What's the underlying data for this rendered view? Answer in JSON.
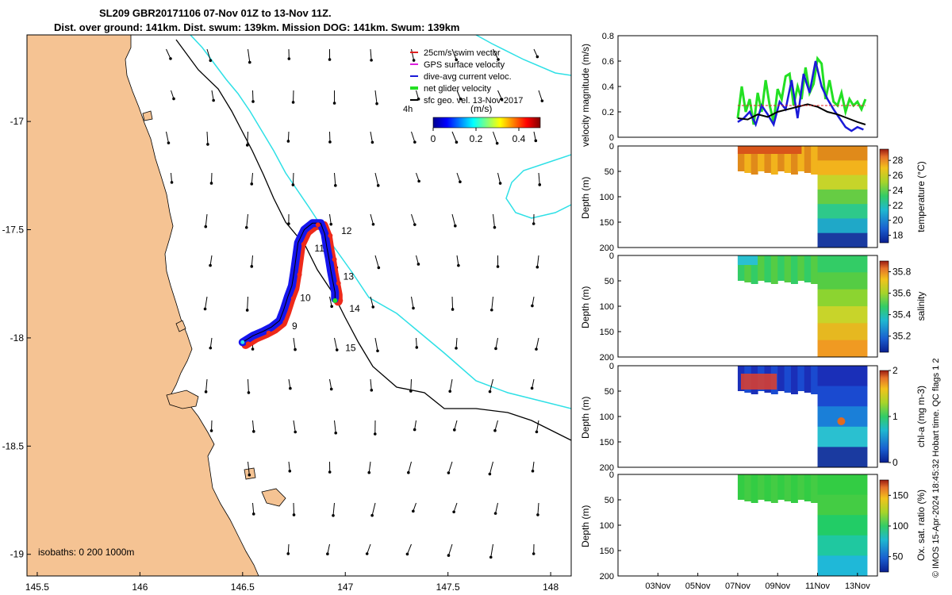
{
  "header": {
    "title_line1": "SL209 GBR20171106 07-Nov 01Z to 13-Nov 11Z.",
    "title_line2": "Dist. over ground: 141km. Dist. swum: 139km. Mission DOG: 141km. Swum: 139km"
  },
  "colors": {
    "land": "#F5C393",
    "track_blue": "#1515ee",
    "track_red": "#ee2a1a",
    "coastline": "#000000",
    "isobath_black": "#000000",
    "isobath_cyan": "#2ee0e6",
    "vel_green": "#23e023",
    "vel_blue": "#1a1ad8",
    "vel_black": "#000000",
    "vel_red": "#e02020"
  },
  "chart_data": [
    {
      "type": "map",
      "xlim": [
        145.45,
        148.1
      ],
      "ylim": [
        -19.1,
        -16.6
      ],
      "x_ticks": [
        "145.5",
        "146",
        "146.5",
        "147",
        "147.5",
        "148"
      ],
      "y_ticks": [
        "-17",
        "-17.5",
        "-18",
        "-18.5",
        "-19"
      ],
      "legend": [
        "25cm/s swim vector",
        "GPS surface velocity",
        "dive-avg current veloc.",
        "net glider velocity",
        "sfc geo. vel. 13-Nov-2017"
      ],
      "colorbar": {
        "label": "(m/s)",
        "ticks": [
          "0",
          "0.2",
          "0.4"
        ],
        "range": [
          0,
          0.5
        ]
      },
      "time_step_label": "4h",
      "isobaths_label": "isobaths: 0   200  1000m",
      "day_labels": [
        {
          "label": "9",
          "lon": 146.74,
          "lat": -17.96
        },
        {
          "label": "10",
          "lon": 146.78,
          "lat": -17.83
        },
        {
          "label": "11",
          "lon": 146.85,
          "lat": -17.6
        },
        {
          "label": "12",
          "lon": 146.98,
          "lat": -17.52
        },
        {
          "label": "13",
          "lon": 146.99,
          "lat": -17.73
        },
        {
          "label": "14",
          "lon": 147.02,
          "lat": -17.88
        },
        {
          "label": "15",
          "lon": 147.0,
          "lat": -18.06
        }
      ],
      "track": [
        [
          146.5,
          -18.02
        ],
        [
          146.55,
          -17.99
        ],
        [
          146.6,
          -17.97
        ],
        [
          146.64,
          -17.95
        ],
        [
          146.68,
          -17.92
        ],
        [
          146.7,
          -17.87
        ],
        [
          146.72,
          -17.81
        ],
        [
          146.74,
          -17.76
        ],
        [
          146.75,
          -17.7
        ],
        [
          146.76,
          -17.63
        ],
        [
          146.77,
          -17.56
        ],
        [
          146.8,
          -17.5
        ],
        [
          146.84,
          -17.47
        ],
        [
          146.88,
          -17.47
        ],
        [
          146.9,
          -17.52
        ],
        [
          146.91,
          -17.58
        ],
        [
          146.92,
          -17.63
        ],
        [
          146.93,
          -17.69
        ],
        [
          146.94,
          -17.74
        ],
        [
          146.95,
          -17.79
        ],
        [
          146.95,
          -17.82
        ]
      ]
    },
    {
      "type": "line",
      "ylabel": "velocity magnitude (m/s)",
      "ylim": [
        0,
        0.8
      ],
      "y_ticks": [
        "0",
        "0.2",
        "0.4",
        "0.6",
        "0.8"
      ],
      "x_range_days": [
        1,
        14
      ],
      "series": [
        {
          "name": "net glider velocity",
          "color": "green",
          "x": [
            7.0,
            7.2,
            7.4,
            7.6,
            7.8,
            8.0,
            8.2,
            8.4,
            8.6,
            8.8,
            9.0,
            9.2,
            9.4,
            9.6,
            9.8,
            10.0,
            10.2,
            10.4,
            10.6,
            10.8,
            11.0,
            11.2,
            11.4,
            11.6,
            11.8,
            12.0,
            12.2,
            12.4,
            12.6,
            12.8,
            13.0,
            13.2,
            13.4
          ],
          "y": [
            0.15,
            0.4,
            0.2,
            0.3,
            0.1,
            0.35,
            0.2,
            0.45,
            0.25,
            0.12,
            0.38,
            0.3,
            0.48,
            0.5,
            0.25,
            0.4,
            0.3,
            0.55,
            0.35,
            0.42,
            0.62,
            0.58,
            0.3,
            0.45,
            0.28,
            0.25,
            0.35,
            0.2,
            0.3,
            0.25,
            0.28,
            0.22,
            0.3
          ]
        },
        {
          "name": "dive-avg current veloc.",
          "color": "blue",
          "x": [
            7.0,
            7.3,
            7.6,
            7.9,
            8.2,
            8.5,
            8.8,
            9.1,
            9.4,
            9.7,
            10.0,
            10.3,
            10.6,
            10.9,
            11.2,
            11.5,
            11.8,
            12.1,
            12.4,
            12.7,
            13.0,
            13.3
          ],
          "y": [
            0.12,
            0.15,
            0.2,
            0.1,
            0.25,
            0.18,
            0.1,
            0.28,
            0.22,
            0.45,
            0.15,
            0.5,
            0.35,
            0.6,
            0.4,
            0.3,
            0.22,
            0.15,
            0.08,
            0.05,
            0.08,
            0.06
          ]
        },
        {
          "name": "sfc geo. vel.",
          "color": "black",
          "x": [
            7.0,
            7.5,
            8.0,
            8.5,
            9.0,
            9.5,
            10.0,
            10.5,
            11.0,
            11.5,
            12.0,
            12.5,
            13.0,
            13.4
          ],
          "y": [
            0.15,
            0.14,
            0.18,
            0.16,
            0.2,
            0.22,
            0.24,
            0.26,
            0.24,
            0.2,
            0.18,
            0.15,
            0.12,
            0.1
          ]
        },
        {
          "name": "25cm/s swim vector",
          "color": "red",
          "x": [
            7.0,
            13.4
          ],
          "y": [
            0.25,
            0.25
          ]
        }
      ]
    },
    {
      "type": "heatmap",
      "variable": "temperature",
      "ylabel": "Depth (m)",
      "colorbar_label": "temperature (°C)",
      "colorbar_ticks": [
        "18",
        "20",
        "22",
        "24",
        "26",
        "28"
      ],
      "clim": [
        17,
        29.5
      ],
      "y_ticks": [
        "0",
        "50",
        "100",
        "150",
        "200"
      ],
      "ylim": [
        0,
        200
      ]
    },
    {
      "type": "heatmap",
      "variable": "salinity",
      "ylabel": "Depth (m)",
      "colorbar_label": "salinity",
      "colorbar_ticks": [
        "35.2",
        "35.4",
        "35.6",
        "35.8"
      ],
      "clim": [
        35.05,
        35.9
      ],
      "y_ticks": [
        "0",
        "50",
        "100",
        "150",
        "200"
      ],
      "ylim": [
        0,
        200
      ]
    },
    {
      "type": "heatmap",
      "variable": "chl-a",
      "ylabel": "Depth (m)",
      "colorbar_label": "chl-a (mg m-3)",
      "colorbar_ticks": [
        "0",
        "1",
        "2"
      ],
      "clim": [
        0,
        2
      ],
      "y_ticks": [
        "0",
        "50",
        "100",
        "150",
        "200"
      ],
      "ylim": [
        0,
        200
      ]
    },
    {
      "type": "heatmap",
      "variable": "oxygen saturation",
      "ylabel": "Depth (m)",
      "colorbar_label": "Ox. sat. ratio (%)",
      "colorbar_ticks": [
        "50",
        "100",
        "150"
      ],
      "clim": [
        25,
        175
      ],
      "y_ticks": [
        "0",
        "50",
        "100",
        "150",
        "200"
      ],
      "ylim": [
        0,
        200
      ],
      "x_ticks": [
        "03Nov",
        "05Nov",
        "07Nov",
        "09Nov",
        "11Nov",
        "13Nov"
      ]
    }
  ],
  "credit": "© IMOS 15-Apr-2024 18:45:32 Hobart time. QC flags 1  2"
}
